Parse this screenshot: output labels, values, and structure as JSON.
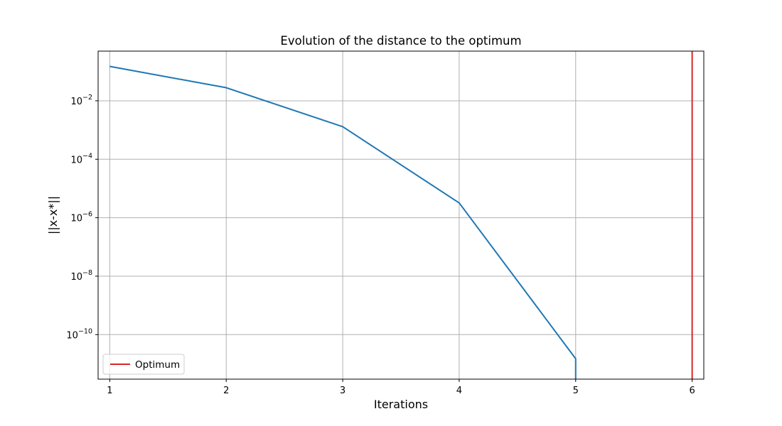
{
  "chart_data": {
    "type": "line",
    "title": "Evolution of the distance to the optimum",
    "xlabel": "Iterations",
    "ylabel": "||x-x*||",
    "yscale": "log",
    "xlim": [
      0.9,
      6.1
    ],
    "ylim": [
      3e-12,
      0.5
    ],
    "grid": true,
    "x_ticks": [
      1,
      2,
      3,
      4,
      5,
      6
    ],
    "y_ticks": [
      {
        "value": 0.01,
        "base": "10",
        "exp": "−2"
      },
      {
        "value": 0.0001,
        "base": "10",
        "exp": "−4"
      },
      {
        "value": 1e-06,
        "base": "10",
        "exp": "−6"
      },
      {
        "value": 1e-08,
        "base": "10",
        "exp": "−8"
      },
      {
        "value": 1e-10,
        "base": "10",
        "exp": "−10"
      }
    ],
    "series": [
      {
        "color": "#1f77b4",
        "points": [
          {
            "x": 1,
            "y": 0.15
          },
          {
            "x": 2,
            "y": 0.028
          },
          {
            "x": 3,
            "y": 0.0013
          },
          {
            "x": 4,
            "y": 3.2e-06
          },
          {
            "x": 5,
            "y": 1.5e-11
          },
          {
            "x": 5,
            "y": 1e-13
          }
        ]
      }
    ],
    "vlines": [
      {
        "name": "Optimum",
        "x": 6,
        "color": "#d62728"
      }
    ],
    "legend": {
      "placement": "lower-left",
      "entries": [
        "Optimum"
      ]
    }
  }
}
